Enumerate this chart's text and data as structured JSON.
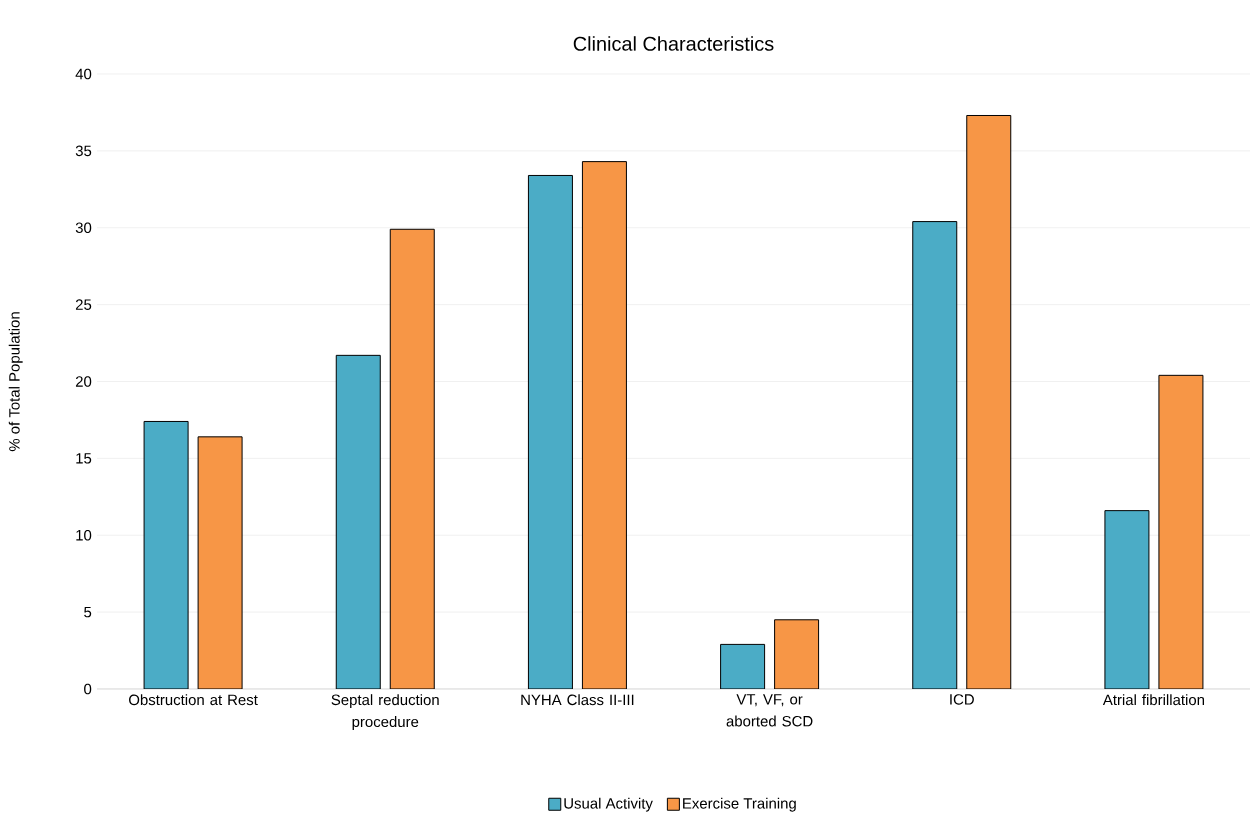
{
  "chart_data": {
    "type": "bar",
    "title": "Clinical Characteristics",
    "ylabel": "% of Total Population",
    "categories": [
      "Obstruction at Rest",
      "Septal reduction procedure",
      "NYHA Class II-III",
      "VT, VF, or aborted SCD",
      "ICD",
      "Atrial fibrillation"
    ],
    "series": [
      {
        "name": "Usual Activity",
        "color": "#4bacc6",
        "values": [
          17.4,
          21.7,
          33.4,
          2.9,
          30.4,
          11.6
        ]
      },
      {
        "name": "Exercise Training",
        "color": "#f79646",
        "values": [
          16.4,
          29.9,
          34.3,
          4.5,
          37.3,
          20.4
        ]
      }
    ],
    "ylim": [
      0,
      40
    ],
    "yticks": [
      0,
      5,
      10,
      15,
      20,
      25,
      30,
      35,
      40
    ],
    "grid": "y",
    "legend": "bottom"
  }
}
